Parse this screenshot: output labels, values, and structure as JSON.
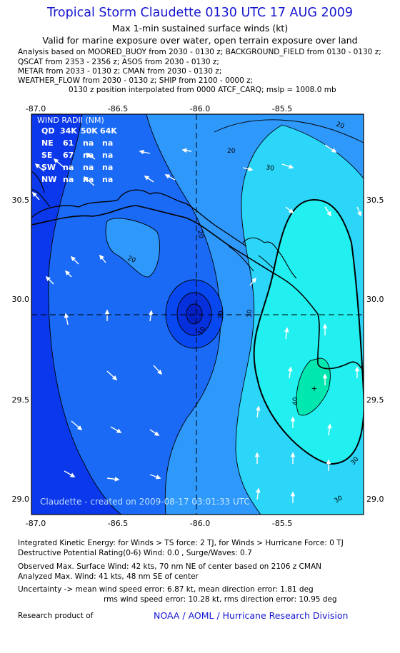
{
  "header": {
    "title": "Tropical Storm Claudette 0130 UTC 17 AUG 2009",
    "subtitle1": "Max 1-min sustained surface winds (kt)",
    "subtitle2": "Valid for marine exposure over water, open terrain exposure over land"
  },
  "analysis": {
    "line1": "Analysis based on  MOORED_BUOY from 2030 - 0130 z;  BACKGROUND_FIELD from 0130 - 0130 z;",
    "line2": "QSCAT from 2353 - 2356 z;  ASOS from 2030 - 0130 z;",
    "line3": "METAR from 2033 - 0130 z;  CMAN from 2030 - 0130 z;",
    "line4": "WEATHER_FLOW from 2030 - 0130 z;  SHIP from 2100 - 0000 z;",
    "line5": "0130 z position interpolated from 0000 ATCF_CARQ; mslp = 1008.0 mb"
  },
  "map": {
    "lon_labels": [
      "-87.0",
      "-86.5",
      "-86.0",
      "-85.5"
    ],
    "lat_labels": [
      "30.5",
      "30.0",
      "29.5",
      "29.0"
    ],
    "contour_labels": [
      "20",
      "30",
      "20",
      "20",
      "20",
      "10",
      "20",
      "30",
      "40",
      "30",
      "30"
    ],
    "center": {
      "lon": -86.0,
      "lat": 29.9
    },
    "colors": {
      "weak": "#0a50ee",
      "mid": "#33b0ff",
      "strong": "#22f0f0",
      "max": "#00e8b0"
    }
  },
  "wind_radii": {
    "title": "WIND RADII (NM)",
    "header": [
      "QD",
      "34K",
      "50K",
      "64K"
    ],
    "rows": [
      [
        "NE",
        "61",
        "na",
        "na"
      ],
      [
        "SE",
        "67",
        "na",
        "na"
      ],
      [
        "SW",
        "na",
        "na",
        "na"
      ],
      [
        "NW",
        "na",
        "na",
        "na"
      ]
    ]
  },
  "watermark": "Claudette - created on 2009-08-17 03:01:33 UTC",
  "footer": {
    "ike": "Integrated Kinetic Energy:  for Winds > TS force: 2 TJ,  for Winds > Hurricane Force: 0 TJ",
    "dpr": "Destructive Potential Rating(0-6)  Wind: 0.0 , Surge/Waves: 0.7",
    "observed": "Observed Max. Surface Wind: 42 kts, 70 nm NE of center based on 2106 z CMAN",
    "analyzed": "Analyzed Max. Wind: 41 kts, 48 nm SE of center",
    "uncert1": "Uncertainty -> mean wind speed error: 6.87 kt,   mean direction error: 1.81 deg",
    "uncert2": "rms wind speed error: 10.28 kt,   rms direction error: 10.95 deg",
    "research": "Research product of",
    "org": "NOAA / AOML / Hurricane Research Division"
  }
}
